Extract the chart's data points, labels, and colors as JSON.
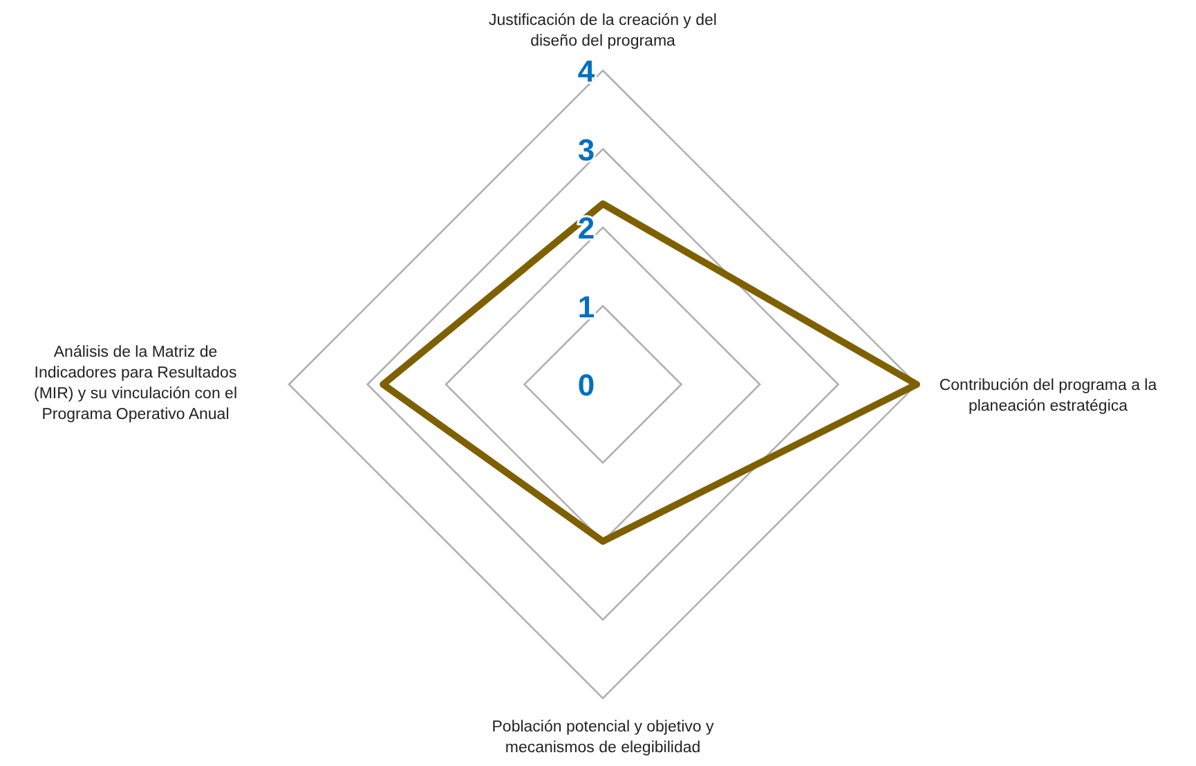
{
  "chart_data": {
    "type": "radar",
    "categories": [
      "Justificación de la creación y del diseño del programa",
      "Contribución del programa a la planeación estratégica",
      "Población potencial y objetivo y mecanismos de elegibilidad",
      "Análisis de la Matriz de Indicadores para Resultados (MIR) y su vinculación con el Programa Operativo Anual"
    ],
    "series": [
      {
        "color": "#7f6000",
        "values": [
          2.3,
          4,
          2,
          2.8
        ]
      }
    ],
    "ylim": [
      0,
      4
    ],
    "yticks": [
      0,
      1,
      2,
      3,
      4
    ],
    "grid": true,
    "marker": "none",
    "line_style": "solid"
  }
}
